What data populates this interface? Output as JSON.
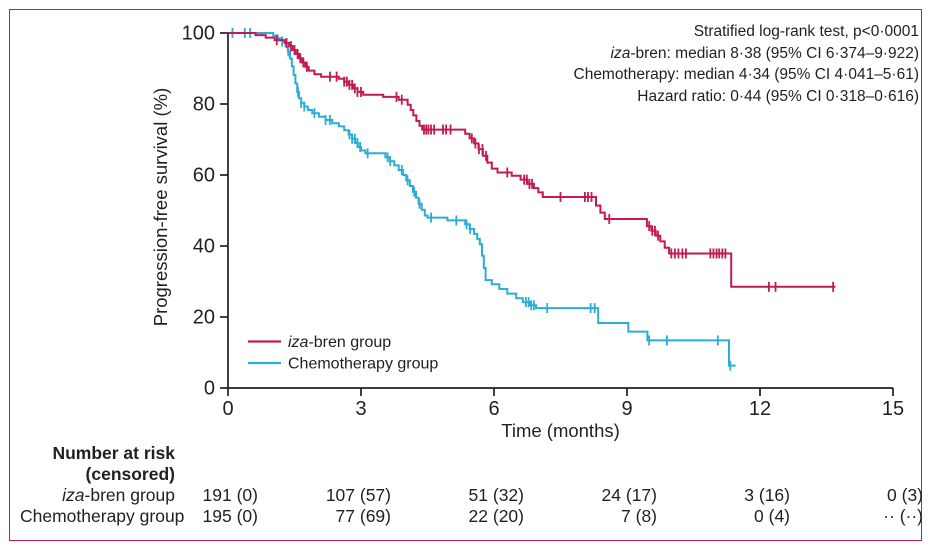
{
  "figure": {
    "border_color": "#c11a54",
    "background": "#ffffff",
    "text_color": "#231f20"
  },
  "annotation": {
    "line1": "Stratified log-rank test, p<0·0001",
    "line2_italic": "iza",
    "line2_rest": "-bren: median 8·38 (95% CI 6·374–9·922)",
    "line3": "Chemotherapy: median 4·34 (95% CI 4·041–5·61)",
    "line4": "Hazard ratio: 0·44 (95% CI 0·318–0·616)"
  },
  "chart_data": {
    "type": "line",
    "subtype": "kaplan-meier-step-curve",
    "title": "",
    "xlabel": "Time (months)",
    "ylabel": "Progression-free survival (%)",
    "xlim": [
      0,
      15
    ],
    "ylim": [
      0,
      100
    ],
    "x_ticks": [
      0,
      3,
      6,
      9,
      12,
      15
    ],
    "y_ticks": [
      0,
      20,
      40,
      60,
      80,
      100
    ],
    "grid": false,
    "legend_position": "inside-lower-left",
    "series": [
      {
        "id": "chemotherapy",
        "label_italic": "",
        "label_rest": "Chemotherapy group",
        "label": "Chemotherapy group",
        "color": "#2badd6",
        "steps": [
          [
            0,
            100
          ],
          [
            1.02,
            99.3
          ],
          [
            1.12,
            98.5
          ],
          [
            1.22,
            97.6
          ],
          [
            1.3,
            96.4
          ],
          [
            1.35,
            94.8
          ],
          [
            1.4,
            92.8
          ],
          [
            1.44,
            90.6
          ],
          [
            1.48,
            88.2
          ],
          [
            1.52,
            85.8
          ],
          [
            1.56,
            83.4
          ],
          [
            1.6,
            81.6
          ],
          [
            1.65,
            80.3
          ],
          [
            1.72,
            79.3
          ],
          [
            1.8,
            78.3
          ],
          [
            1.9,
            77.4
          ],
          [
            2.05,
            76.4
          ],
          [
            2.2,
            75.5
          ],
          [
            2.35,
            74.6
          ],
          [
            2.5,
            73.7
          ],
          [
            2.62,
            72.6
          ],
          [
            2.72,
            71.4
          ],
          [
            2.8,
            70.2
          ],
          [
            2.87,
            69.0
          ],
          [
            2.93,
            67.9
          ],
          [
            3.0,
            66.9
          ],
          [
            3.1,
            66.1
          ],
          [
            3.55,
            65.0
          ],
          [
            3.65,
            63.9
          ],
          [
            3.75,
            62.7
          ],
          [
            3.85,
            61.4
          ],
          [
            3.95,
            60.0
          ],
          [
            4.02,
            58.5
          ],
          [
            4.1,
            56.9
          ],
          [
            4.17,
            55.3
          ],
          [
            4.24,
            53.6
          ],
          [
            4.3,
            51.9
          ],
          [
            4.37,
            50.2
          ],
          [
            4.44,
            48.6
          ],
          [
            4.5,
            48.0
          ],
          [
            4.95,
            47.2
          ],
          [
            5.35,
            46.1
          ],
          [
            5.45,
            44.8
          ],
          [
            5.55,
            43.4
          ],
          [
            5.62,
            42.0
          ],
          [
            5.68,
            40.5
          ],
          [
            5.73,
            37.3
          ],
          [
            5.77,
            33.8
          ],
          [
            5.81,
            30.4
          ],
          [
            5.95,
            29.2
          ],
          [
            6.12,
            27.9
          ],
          [
            6.3,
            26.6
          ],
          [
            6.5,
            25.3
          ],
          [
            6.65,
            24.2
          ],
          [
            6.8,
            23.3
          ],
          [
            6.95,
            22.5
          ],
          [
            8.35,
            18.3
          ],
          [
            9.03,
            15.9
          ],
          [
            9.46,
            13.4
          ],
          [
            11.3,
            6.3
          ],
          [
            11.45,
            6.3
          ]
        ],
        "censor_times": [
          0.1,
          0.38,
          0.5,
          1.22,
          1.36,
          1.58,
          1.65,
          1.72,
          1.95,
          2.2,
          2.3,
          2.74,
          2.8,
          2.86,
          2.92,
          2.98,
          3.15,
          3.6,
          3.66,
          3.92,
          4.05,
          4.2,
          4.32,
          4.58,
          5.15,
          5.38,
          5.46,
          6.72,
          6.78,
          6.84,
          6.9,
          7.2,
          8.18,
          8.27,
          9.5,
          9.9,
          11.05,
          11.33
        ]
      },
      {
        "id": "iza-bren",
        "label_italic": "iza",
        "label_rest": "-bren group",
        "label": "iza-bren group",
        "color": "#c11a54",
        "steps": [
          [
            0,
            100
          ],
          [
            0.62,
            99.4
          ],
          [
            0.85,
            98.7
          ],
          [
            1.05,
            98.0
          ],
          [
            1.28,
            97.2
          ],
          [
            1.38,
            96.3
          ],
          [
            1.46,
            95.2
          ],
          [
            1.53,
            94.1
          ],
          [
            1.6,
            92.9
          ],
          [
            1.67,
            91.7
          ],
          [
            1.74,
            90.5
          ],
          [
            1.82,
            89.4
          ],
          [
            1.95,
            88.4
          ],
          [
            2.1,
            87.7
          ],
          [
            2.5,
            87.1
          ],
          [
            2.62,
            86.3
          ],
          [
            2.72,
            85.4
          ],
          [
            2.82,
            84.4
          ],
          [
            2.92,
            83.4
          ],
          [
            3.05,
            82.6
          ],
          [
            3.5,
            82.0
          ],
          [
            3.85,
            81.2
          ],
          [
            4.05,
            79.8
          ],
          [
            4.12,
            78.3
          ],
          [
            4.18,
            76.8
          ],
          [
            4.25,
            75.2
          ],
          [
            4.32,
            73.9
          ],
          [
            4.38,
            72.8
          ],
          [
            5.35,
            71.6
          ],
          [
            5.45,
            70.3
          ],
          [
            5.55,
            68.9
          ],
          [
            5.65,
            67.3
          ],
          [
            5.75,
            65.4
          ],
          [
            5.85,
            63.5
          ],
          [
            5.95,
            61.8
          ],
          [
            6.08,
            60.7
          ],
          [
            6.4,
            59.8
          ],
          [
            6.6,
            58.7
          ],
          [
            6.75,
            57.5
          ],
          [
            6.9,
            56.3
          ],
          [
            7.0,
            55.1
          ],
          [
            7.1,
            53.8
          ],
          [
            8.3,
            51.4
          ],
          [
            8.4,
            49.4
          ],
          [
            8.5,
            47.6
          ],
          [
            9.45,
            45.6
          ],
          [
            9.55,
            44.3
          ],
          [
            9.65,
            42.9
          ],
          [
            9.75,
            41.3
          ],
          [
            9.85,
            39.5
          ],
          [
            9.95,
            37.9
          ],
          [
            11.35,
            28.5
          ],
          [
            13.7,
            28.5
          ]
        ],
        "censor_times": [
          1.1,
          1.32,
          1.42,
          1.5,
          1.57,
          1.63,
          1.7,
          1.78,
          2.3,
          2.45,
          2.62,
          2.68,
          2.74,
          2.8,
          2.86,
          2.92,
          3.0,
          3.8,
          3.92,
          4.42,
          4.47,
          4.52,
          4.58,
          4.65,
          4.85,
          4.92,
          5.02,
          5.5,
          5.58,
          5.66,
          5.74,
          5.82,
          6.3,
          6.68,
          6.74,
          6.8,
          6.86,
          7.5,
          8.05,
          8.12,
          8.2,
          8.6,
          9.5,
          9.57,
          9.63,
          9.7,
          10.0,
          10.08,
          10.16,
          10.25,
          10.33,
          10.88,
          10.95,
          11.02,
          11.08,
          11.15,
          11.22,
          12.2,
          12.35,
          13.65
        ]
      }
    ],
    "legend_order": [
      "iza-bren",
      "chemotherapy"
    ]
  },
  "risk_table": {
    "header_line1": "Number at risk",
    "header_line2": "(censored)",
    "rows": [
      {
        "label_italic": "iza",
        "label_rest": "-bren group",
        "label": "iza-bren group",
        "values": [
          "191 (0)",
          "107 (57)",
          "51 (32)",
          "24 (17)",
          "3 (16)",
          "0 (3)"
        ]
      },
      {
        "label_italic": "",
        "label_rest": "Chemotherapy group",
        "label": "Chemotherapy group",
        "values": [
          "195 (0)",
          "77 (69)",
          "22 (20)",
          "7 (8)",
          "0 (4)",
          "·· (··)"
        ]
      }
    ]
  }
}
